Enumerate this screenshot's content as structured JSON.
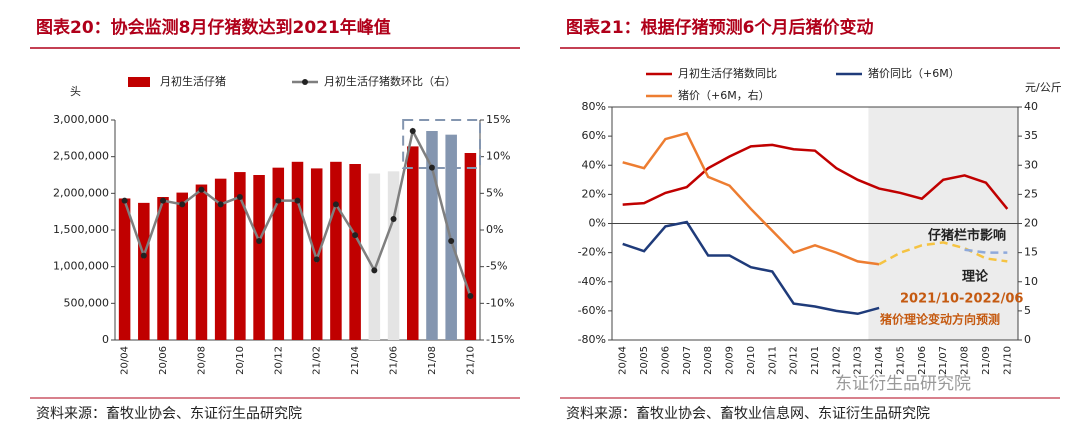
{
  "chart_data": [
    {
      "type": "bar",
      "title": "图表20：协会监测8月仔猪数达到2021年峰值",
      "y_label": "头",
      "source": "资料来源：畜牧业协会、东证衍生品研究院",
      "categories": [
        "20/04",
        null,
        "20/06",
        null,
        "20/08",
        null,
        "20/10",
        null,
        "20/12",
        null,
        "21/02",
        null,
        "21/04",
        null,
        "21/06",
        null,
        "21/08",
        null,
        "21/10"
      ],
      "series": [
        {
          "name": "月初生活仔猪",
          "type": "bar",
          "color": "#c00000",
          "colors": [
            "#c00000",
            "#c00000",
            "#c00000",
            "#c00000",
            "#c00000",
            "#c00000",
            "#c00000",
            "#c00000",
            "#c00000",
            "#c00000",
            "#c00000",
            "#c00000",
            "#c00000",
            "#e4e4e4",
            "#e4e4e4",
            "#c00000",
            "#8496b0",
            "#8496b0",
            "#c00000"
          ],
          "values": [
            1930000,
            1870000,
            1950000,
            2010000,
            2120000,
            2200000,
            2290000,
            2250000,
            2350000,
            2430000,
            2340000,
            2430000,
            2400000,
            2270000,
            2300000,
            2640000,
            2850000,
            2800000,
            2550000
          ]
        },
        {
          "name": "月初生活仔猪数环比（右）",
          "type": "line",
          "axis": "y2",
          "color": "#7f7f7f",
          "marker_color": "#222",
          "values": [
            4,
            -3.5,
            4,
            3.5,
            5.5,
            3.5,
            4.5,
            -1.5,
            4,
            4,
            -4,
            3.5,
            -0.7,
            -5.5,
            1.5,
            13.5,
            8.5,
            -1.5,
            -9
          ]
        }
      ],
      "ylim": [
        0,
        3000000
      ],
      "yticks": [
        0,
        {
          "value": 500000,
          "label": "500,000"
        },
        {
          "value": 1000000,
          "label": "1,000,000"
        },
        {
          "value": 1500000,
          "label": "1,500,000"
        },
        {
          "value": 2000000,
          "label": "2,000,000"
        },
        {
          "value": 2500000,
          "label": "2,500,000"
        },
        {
          "value": 3000000,
          "label": "3,000,000"
        }
      ],
      "y2lim": [
        -15,
        15
      ],
      "y2ticks": [
        {
          "value": -15,
          "label": "-15%"
        },
        {
          "value": -10,
          "label": "-10%"
        },
        {
          "value": -5,
          "label": "-5%"
        },
        {
          "value": 0,
          "label": "0%"
        },
        {
          "value": 5,
          "label": "5%"
        },
        {
          "value": 10,
          "label": "10%"
        },
        {
          "value": 15,
          "label": "15%"
        }
      ]
    },
    {
      "type": "line",
      "title": "图表21：根据仔猪预测6个月后猪价变动",
      "y2_label": "元/公斤",
      "source": "资料来源：畜牧业协会、畜牧业信息网、东证衍生品研究院",
      "watermark": "东证衍生品研究院",
      "annotations": [
        "仔猪栏市影响",
        "理论",
        "2021/10-2022/06",
        "猪价理论变动方向预测"
      ],
      "categories": [
        "20/04",
        "20/05",
        "20/06",
        "20/07",
        "20/08",
        "20/09",
        "20/10",
        "20/11",
        "20/12",
        "21/01",
        "21/02",
        "21/03",
        "21/04",
        "21/05",
        "21/06",
        "21/07",
        "21/08",
        "21/09",
        "21/10"
      ],
      "series": [
        {
          "name": "月初生活仔猪数同比",
          "color": "#c00000",
          "values": [
            13,
            14,
            21,
            25,
            38,
            46,
            53,
            54,
            51,
            50,
            38,
            30,
            24,
            21,
            17,
            30,
            33,
            28,
            10
          ]
        },
        {
          "name": "猪价同比（+6M）",
          "color": "#1f3b7a",
          "values": [
            -14,
            -19,
            -2,
            1,
            -22,
            -22,
            -30,
            -33,
            -55,
            -57,
            -60,
            -62,
            -58,
            null,
            null,
            null,
            null,
            null,
            null
          ]
        },
        {
          "name": "猪价（+6M，右）",
          "axis": "y2",
          "color": "#ed7d31",
          "values": [
            30.5,
            29.5,
            34.5,
            35.5,
            28,
            26.5,
            22.5,
            18.75,
            15,
            16.25,
            15,
            13.5,
            13,
            null,
            null,
            null,
            null,
            null,
            null
          ]
        }
      ],
      "forecast_series": [
        {
          "axis": "y2",
          "color": "#f5c342",
          "dash": true,
          "values": [
            null,
            null,
            null,
            null,
            null,
            null,
            null,
            null,
            null,
            null,
            null,
            null,
            13,
            15,
            16.25,
            16.75,
            15.75,
            14,
            13.5
          ]
        },
        {
          "color": "#8ea9db",
          "dash": true,
          "values": [
            null,
            null,
            null,
            null,
            null,
            null,
            null,
            null,
            null,
            null,
            null,
            null,
            null,
            null,
            null,
            null,
            -18,
            -20,
            -20
          ]
        }
      ],
      "ylim": [
        -80,
        80
      ],
      "yticks": [
        {
          "value": -80,
          "label": "-80%"
        },
        {
          "value": -60,
          "label": "-60%"
        },
        {
          "value": -40,
          "label": "-40%"
        },
        {
          "value": -20,
          "label": "-20%"
        },
        {
          "value": 0,
          "label": "0%"
        },
        {
          "value": 20,
          "label": "20%"
        },
        {
          "value": 40,
          "label": "40%"
        },
        {
          "value": 60,
          "label": "60%"
        },
        {
          "value": 80,
          "label": "80%"
        }
      ],
      "y2lim": [
        0,
        40
      ],
      "y2ticks": [
        0,
        5,
        10,
        15,
        20,
        25,
        30,
        35,
        40
      ]
    }
  ]
}
